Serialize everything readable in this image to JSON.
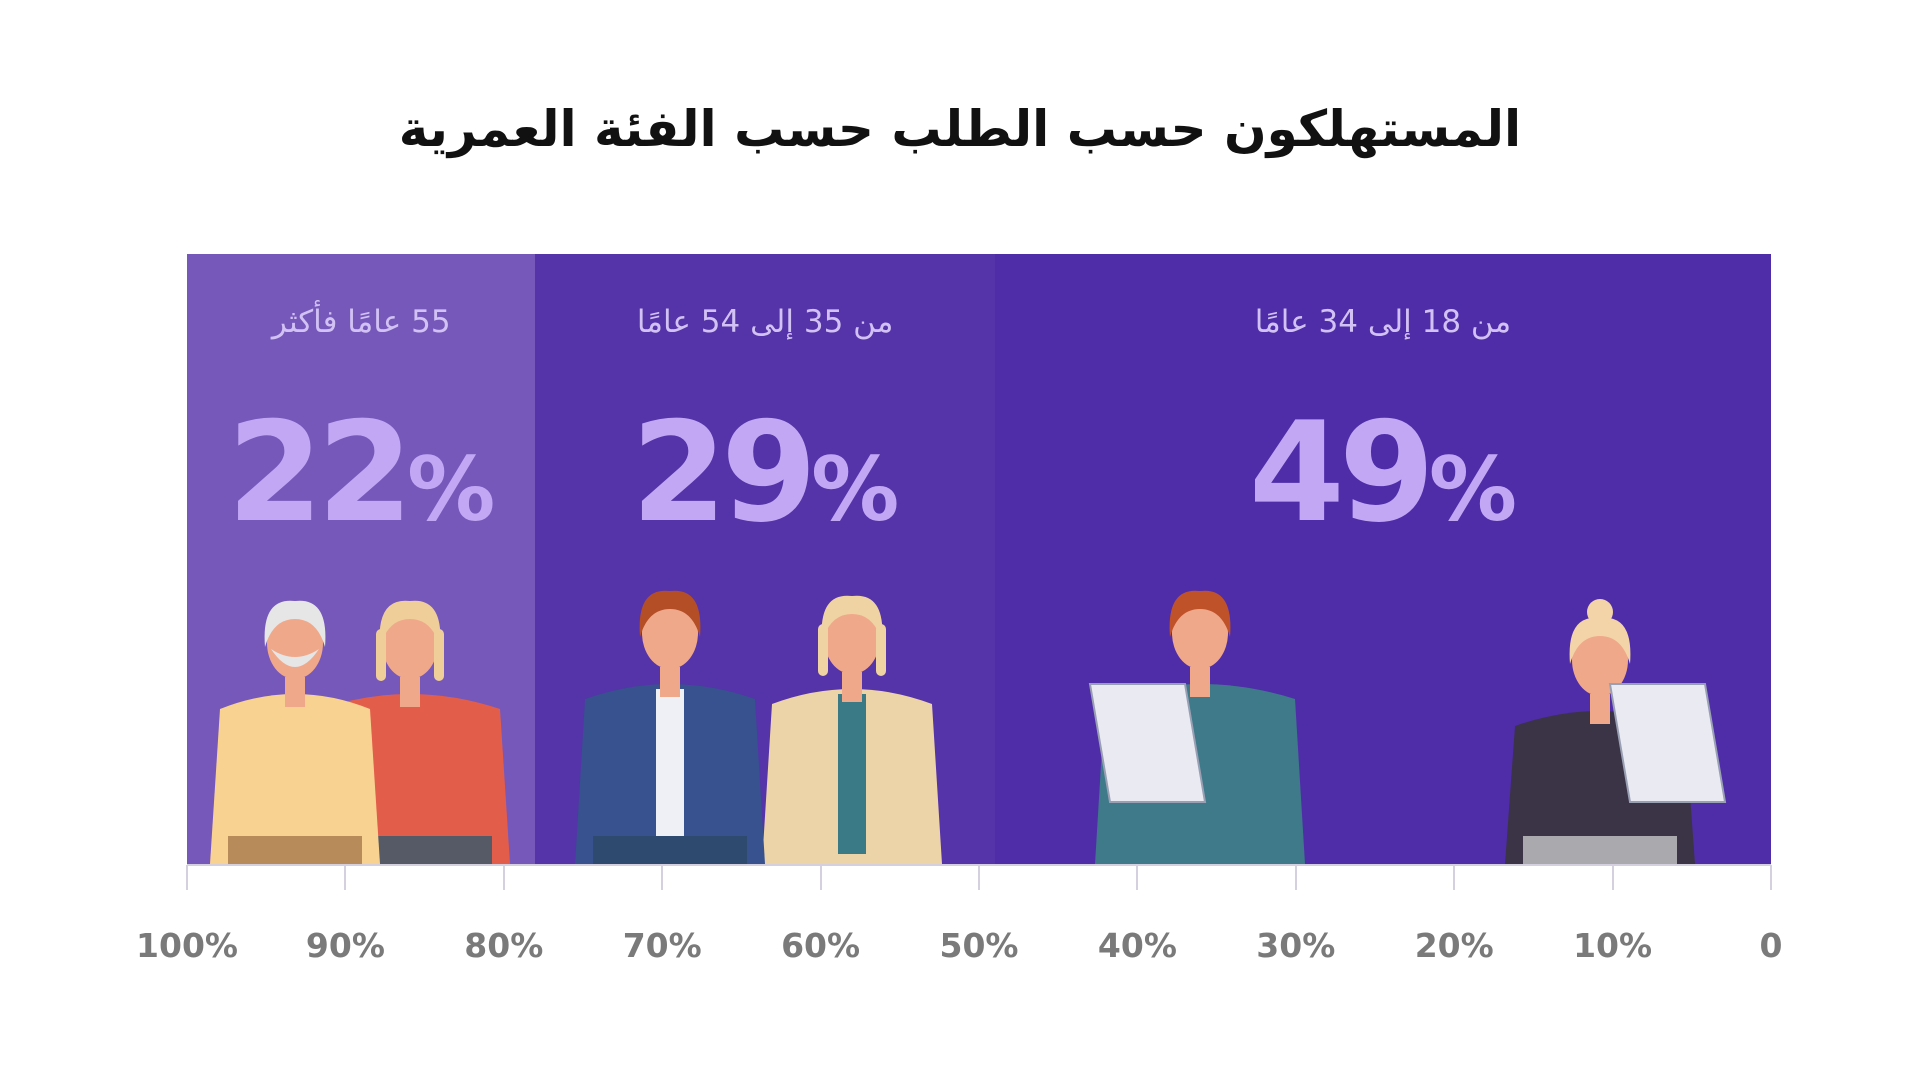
{
  "title": "المستهلكون حسب الطلب حسب الفئة العمرية",
  "colors": {
    "seg_55_plus": "#7658bb",
    "seg_35_54": "#5533a8",
    "seg_18_34": "#4f2da8",
    "value_text": "#c2a8f4",
    "label_text": "#d2c2f3",
    "axis": "#d4d0e0",
    "tick_text": "#7a7a7a"
  },
  "chart_data": {
    "type": "bar",
    "orientation": "horizontal-stacked-100",
    "axis_direction": "right-to-left",
    "categories": [
      "من 18 إلى 34 عامًا",
      "من 35 إلى 54 عامًا",
      "55 عامًا فأكثر"
    ],
    "values": [
      49,
      29,
      22
    ],
    "value_suffix": "%",
    "xlim": [
      0,
      100
    ],
    "ticks": [
      "0",
      "10%",
      "20%",
      "30%",
      "40%",
      "50%",
      "60%",
      "70%",
      "80%",
      "90%",
      "100%"
    ],
    "tick_values": [
      0,
      10,
      20,
      30,
      40,
      50,
      60,
      70,
      80,
      90,
      100
    ],
    "grid": false,
    "legend": "none"
  },
  "figures": [
    "woman-with-tablet-icon",
    "man-with-tablet-icon",
    "woman-in-cardigan-icon",
    "man-in-blazer-icon",
    "blonde-woman-in-sweater-icon",
    "elderly-man-with-suspenders-icon"
  ]
}
